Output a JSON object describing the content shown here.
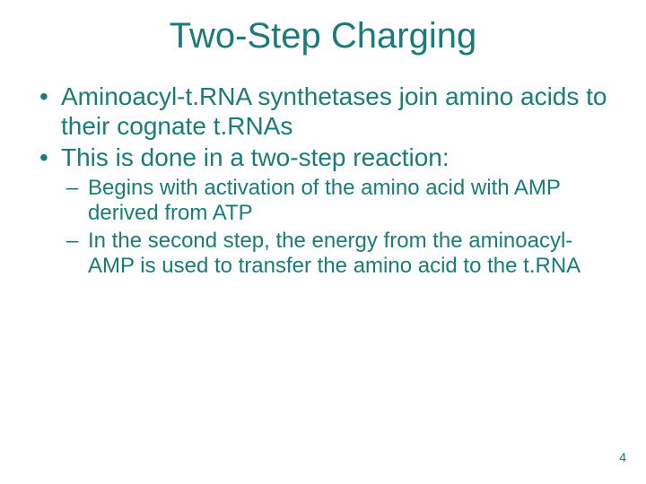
{
  "colors": {
    "title": "#1b7b78",
    "body": "#1b7b78",
    "background": "#ffffff"
  },
  "typography": {
    "title_fontsize": 40,
    "level1_fontsize": 28,
    "level2_fontsize": 24,
    "pagenum_fontsize": 14,
    "font_family": "Arial"
  },
  "title": "Two-Step Charging",
  "bullets": [
    {
      "text": "Aminoacyl-t.RNA synthetases join amino acids to their cognate t.RNAs",
      "children": []
    },
    {
      "text": "This is done in a two-step reaction:",
      "children": [
        {
          "text": "Begins with activation of the amino acid with AMP derived from ATP"
        },
        {
          "text": "In the second step, the energy from the aminoacyl-AMP is used to transfer the amino acid to the t.RNA"
        }
      ]
    }
  ],
  "page_number": "4"
}
